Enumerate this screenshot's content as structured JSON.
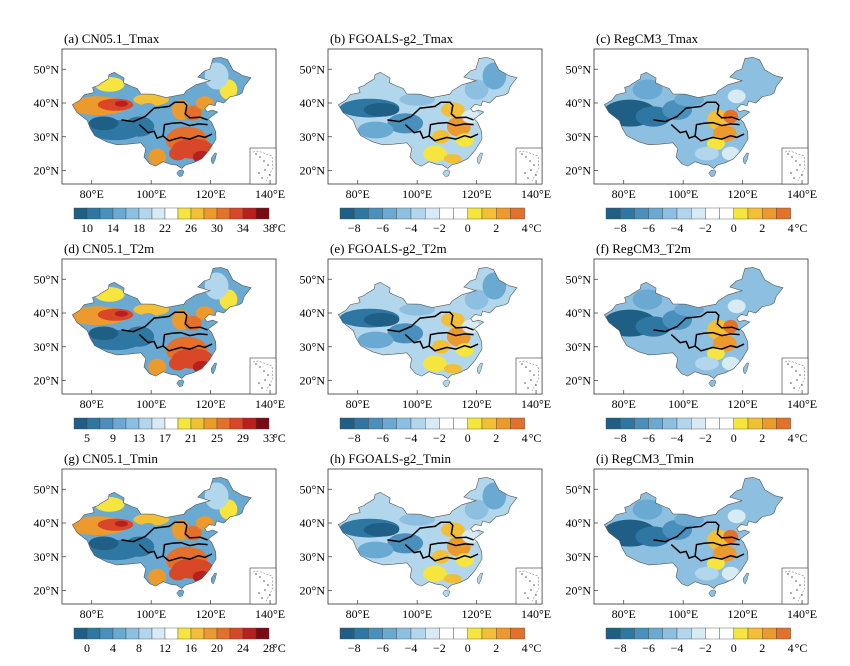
{
  "figure": {
    "latitude_labels": [
      "50°N",
      "40°N",
      "30°N",
      "20°N"
    ],
    "longitude_labels": [
      "80°E",
      "100°E",
      "120°E",
      "140°E"
    ],
    "unit": "°C",
    "colors": {
      "map_edge": "#555555",
      "region_boundary": "#000000",
      "cold_scale": [
        "#1f5f85",
        "#2e77a2",
        "#4a90bc",
        "#6aa9d1",
        "#8dc0e0",
        "#b2d6ec",
        "#d8ebf5"
      ],
      "neutral": "#ffffff",
      "warm_scale": [
        "#f6e43f",
        "#f2bf36",
        "#ec9a2d",
        "#e4712b",
        "#d84727",
        "#b8201f",
        "#7a0b13"
      ]
    }
  },
  "panels": [
    {
      "id": "a",
      "label": "(a)",
      "title": "CN05.1_Tmax",
      "variable": "Tmax",
      "source": "CN05.1",
      "scale": "absolute",
      "colorbar_ticks": [
        "10",
        "14",
        "18",
        "22",
        "26",
        "30",
        "34",
        "38"
      ]
    },
    {
      "id": "b",
      "label": "(b)",
      "title": "FGOALS-g2_Tmax",
      "variable": "Tmax",
      "source": "FGOALS-g2",
      "scale": "bias",
      "colorbar_ticks": [
        "−8",
        "−6",
        "−4",
        "−2",
        "0",
        "2",
        "4"
      ]
    },
    {
      "id": "c",
      "label": "(c)",
      "title": "RegCM3_Tmax",
      "variable": "Tmax",
      "source": "RegCM3",
      "scale": "bias",
      "colorbar_ticks": [
        "−8",
        "−6",
        "−4",
        "−2",
        "0",
        "2",
        "4"
      ]
    },
    {
      "id": "d",
      "label": "(d)",
      "title": "CN05.1_T2m",
      "variable": "T2m",
      "source": "CN05.1",
      "scale": "absolute",
      "colorbar_ticks": [
        "5",
        "9",
        "13",
        "17",
        "21",
        "25",
        "29",
        "33"
      ]
    },
    {
      "id": "e",
      "label": "(e)",
      "title": "FGOALS-g2_T2m",
      "variable": "T2m",
      "source": "FGOALS-g2",
      "scale": "bias",
      "colorbar_ticks": [
        "−8",
        "−6",
        "−4",
        "−2",
        "0",
        "2",
        "4"
      ]
    },
    {
      "id": "f",
      "label": "(f)",
      "title": "RegCM3_T2m",
      "variable": "T2m",
      "source": "RegCM3",
      "scale": "bias",
      "colorbar_ticks": [
        "−8",
        "−6",
        "−4",
        "−2",
        "0",
        "2",
        "4"
      ]
    },
    {
      "id": "g",
      "label": "(g)",
      "title": "CN05.1_Tmin",
      "variable": "Tmin",
      "source": "CN05.1",
      "scale": "absolute",
      "colorbar_ticks": [
        "0",
        "4",
        "8",
        "12",
        "16",
        "20",
        "24",
        "28"
      ]
    },
    {
      "id": "h",
      "label": "(h)",
      "title": "FGOALS-g2_Tmin",
      "variable": "Tmin",
      "source": "FGOALS-g2",
      "scale": "bias",
      "colorbar_ticks": [
        "−8",
        "−6",
        "−4",
        "−2",
        "0",
        "2",
        "4"
      ]
    },
    {
      "id": "i",
      "label": "(i)",
      "title": "RegCM3_Tmin",
      "variable": "Tmin",
      "source": "RegCM3",
      "scale": "bias",
      "colorbar_ticks": [
        "−8",
        "−6",
        "−4",
        "−2",
        "0",
        "2",
        "4"
      ]
    }
  ]
}
